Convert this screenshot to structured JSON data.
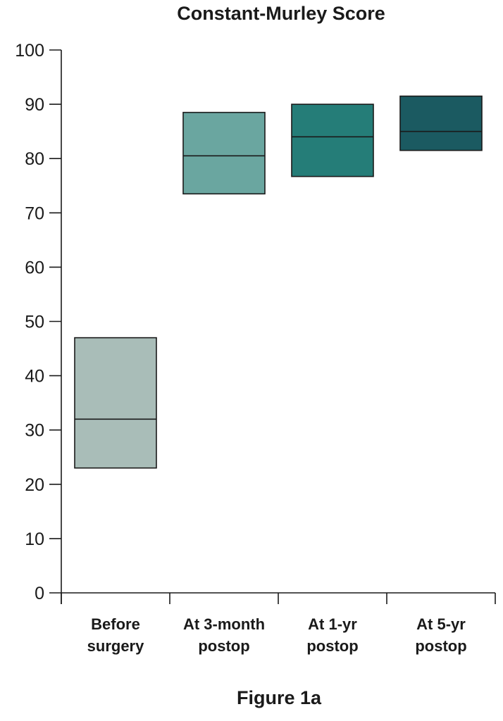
{
  "chart_data": {
    "type": "box",
    "title": "Constant-Murley Score",
    "caption": "Figure 1a",
    "ylim": [
      0,
      100
    ],
    "yticks": [
      0,
      10,
      20,
      30,
      40,
      50,
      60,
      70,
      80,
      90,
      100
    ],
    "categories": [
      [
        "Before",
        "surgery"
      ],
      [
        "At 3-month",
        "postop"
      ],
      [
        "At 1-yr",
        "postop"
      ],
      [
        "At 5-yr",
        "postop"
      ]
    ],
    "boxes": [
      {
        "q1": 23,
        "median": 32,
        "q3": 47,
        "color": "#a9bdb8"
      },
      {
        "q1": 73.5,
        "median": 80.5,
        "q3": 88.5,
        "color": "#6aa6a0"
      },
      {
        "q1": 76.7,
        "median": 84,
        "q3": 90,
        "color": "#257d78"
      },
      {
        "q1": 81.5,
        "median": 85,
        "q3": 91.5,
        "color": "#1b5a61"
      }
    ],
    "grid": false
  }
}
